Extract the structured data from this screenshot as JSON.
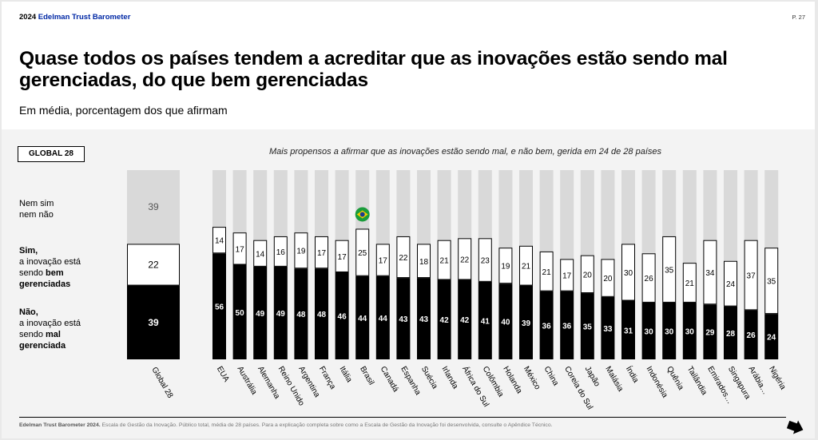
{
  "header": {
    "year": "2024",
    "brand": "Edelman Trust Barometer",
    "page_number": "P. 27"
  },
  "title": "Quase todos os países tendem a acreditar que as inovações estão sendo mal gerenciadas, do que bem gerenciadas",
  "subtitle": "Em média, porcentagem dos que afirmam",
  "global_label": "GLOBAL 28",
  "note": "Mais propensos a afirmar que as inovações estão sendo mal, e não bem, gerida em 24 de 28 países",
  "legend": {
    "neutral": [
      "Nem sim",
      "nem não"
    ],
    "sim": [
      {
        "text": "Sim,",
        "bold": true
      },
      {
        "text": "a inovação está",
        "bold": false
      },
      {
        "text": "sendo ",
        "bold": false,
        "tail": "bem"
      },
      {
        "text": "gerenciadas",
        "bold": true
      }
    ],
    "nao": [
      {
        "text": "Não,",
        "bold": true
      },
      {
        "text": "a inovação está",
        "bold": false
      },
      {
        "text": "sendo ",
        "bold": false,
        "tail": "mal"
      },
      {
        "text": "gerenciada",
        "bold": true
      }
    ]
  },
  "footer": {
    "source": "Edelman Trust Barometer 2024.",
    "text": " Escala de Gestão da Inovação. Público total, média de 28 países. Para a explicação completa sobre como a Escala de Gestão da Inovação foi desenvolvida, consulte o Apêndice Técnico."
  },
  "colors": {
    "nao": "#000000",
    "sim": "#ffffff",
    "neutral": "#d9d9d9",
    "brand": "#0028a5"
  },
  "highlight_icon": "brazil-flag-icon",
  "chart_data": {
    "type": "bar",
    "stacked": true,
    "orientation": "vertical",
    "global": {
      "category": "Global 28",
      "mal": 39,
      "bem": 22,
      "neutro": 39
    },
    "categories": [
      "EUA",
      "Austrália",
      "Alemanha",
      "Reino Unido",
      "Argentina",
      "França",
      "Itália",
      "Brasil",
      "Canadá",
      "Espanha",
      "Suécia",
      "Irlanda",
      "África do Sul",
      "Colômbia",
      "Holanda",
      "México",
      "China",
      "Coreia do Sul",
      "Japão",
      "Malásia",
      "Índia",
      "Indonésia",
      "Quênia",
      "Tailândia",
      "Emirados…",
      "Singapura",
      "Arábia…",
      "Nigéria"
    ],
    "series": [
      {
        "name": "Não, a inovação está sendo mal gerenciada",
        "values": [
          56,
          50,
          49,
          49,
          48,
          48,
          46,
          44,
          44,
          43,
          43,
          42,
          42,
          41,
          40,
          39,
          36,
          36,
          35,
          33,
          31,
          30,
          30,
          30,
          29,
          28,
          26,
          24
        ]
      },
      {
        "name": "Sim, a inovação está sendo bem gerenciadas",
        "values": [
          14,
          17,
          14,
          16,
          19,
          17,
          17,
          25,
          17,
          22,
          18,
          21,
          22,
          23,
          19,
          21,
          21,
          17,
          20,
          20,
          30,
          26,
          35,
          21,
          34,
          24,
          37,
          35
        ]
      },
      {
        "name": "Nem sim nem não"
      }
    ],
    "highlight_category": "Brasil",
    "ylim": [
      0,
      100
    ]
  }
}
